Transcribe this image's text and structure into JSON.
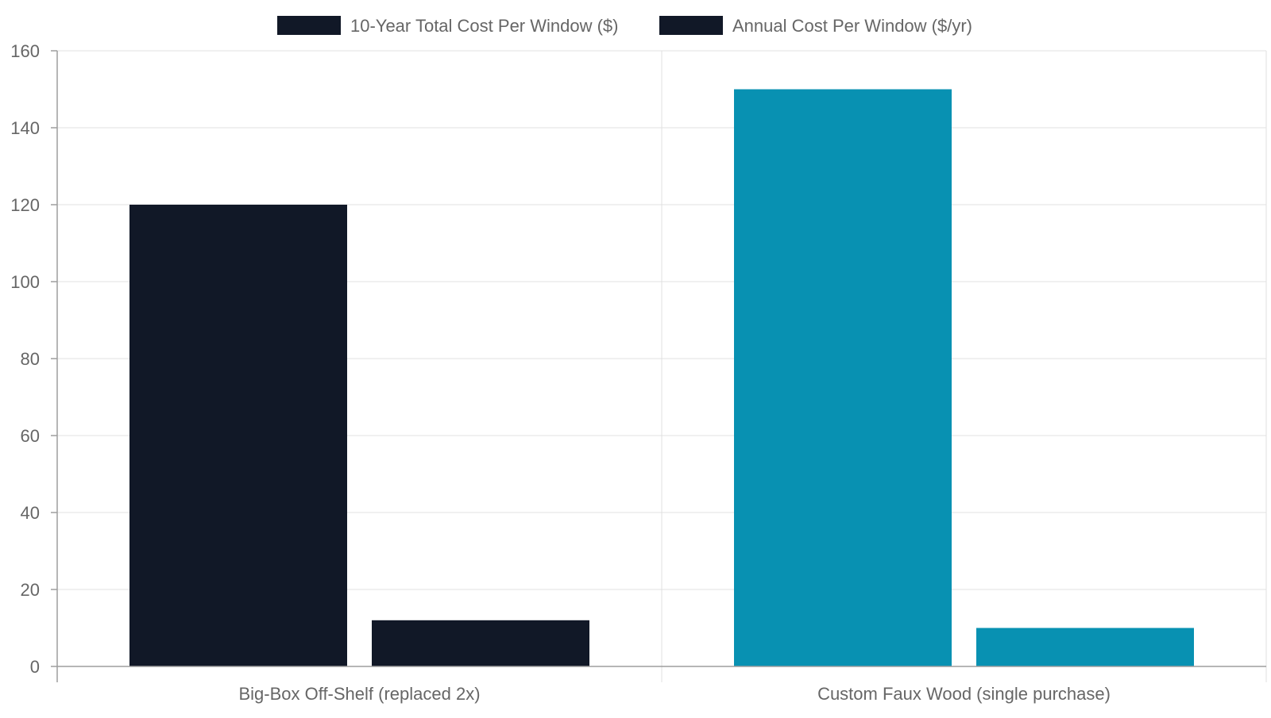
{
  "chart_data": {
    "type": "bar",
    "categories": [
      "Big-Box Off-Shelf (replaced 2x)",
      "Custom Faux Wood (single purchase)"
    ],
    "series": [
      {
        "name": "10-Year Total Cost Per Window ($)",
        "values": [
          120,
          150
        ]
      },
      {
        "name": "Annual Cost Per Window ($/yr)",
        "values": [
          12,
          10
        ]
      }
    ],
    "category_colors": [
      "#111827",
      "#0891b2"
    ],
    "legend_color": "#111827",
    "ylim": [
      0,
      160
    ],
    "yticks": [
      0,
      20,
      40,
      60,
      80,
      100,
      120,
      140,
      160
    ],
    "legend_position": "top-center",
    "grid": true
  }
}
